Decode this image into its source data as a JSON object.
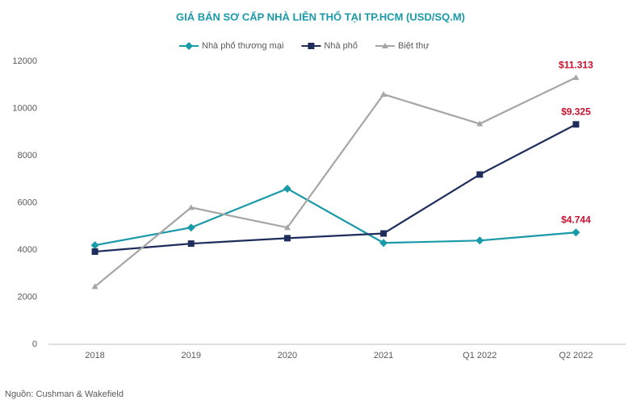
{
  "chart_data": {
    "type": "line",
    "title": "GIÁ BÁN SƠ CẤP NHÀ LIÊN THỔ TẠI TP.HCM (USD/SQ.M)",
    "categories": [
      "2018",
      "2019",
      "2020",
      "2021",
      "Q1 2022",
      "Q2 2022"
    ],
    "series": [
      {
        "name": "Nhà phố thương mại",
        "color": "#1a9aa8",
        "marker": "diamond",
        "values": [
          4200,
          4950,
          6600,
          4300,
          4400,
          4744
        ],
        "value_labels": [
          null,
          null,
          null,
          null,
          null,
          "$4.744"
        ]
      },
      {
        "name": "Nhà phố",
        "color": "#1f2d5c",
        "marker": "square",
        "values": [
          3930,
          4270,
          4500,
          4700,
          7200,
          9325
        ],
        "value_labels": [
          null,
          null,
          null,
          null,
          null,
          "$9.325"
        ]
      },
      {
        "name": "Biệt thự",
        "color": "#a6a6a6",
        "marker": "triangle",
        "values": [
          2450,
          5800,
          4950,
          10600,
          9350,
          11313
        ],
        "value_labels": [
          null,
          null,
          null,
          null,
          null,
          "$11.313"
        ]
      }
    ],
    "ylim": [
      0,
      12000
    ],
    "yticks": [
      0,
      2000,
      4000,
      6000,
      8000,
      10000,
      12000
    ],
    "label_color": "#c8102e",
    "source": "Nguồn: Cushman & Wakefield"
  }
}
